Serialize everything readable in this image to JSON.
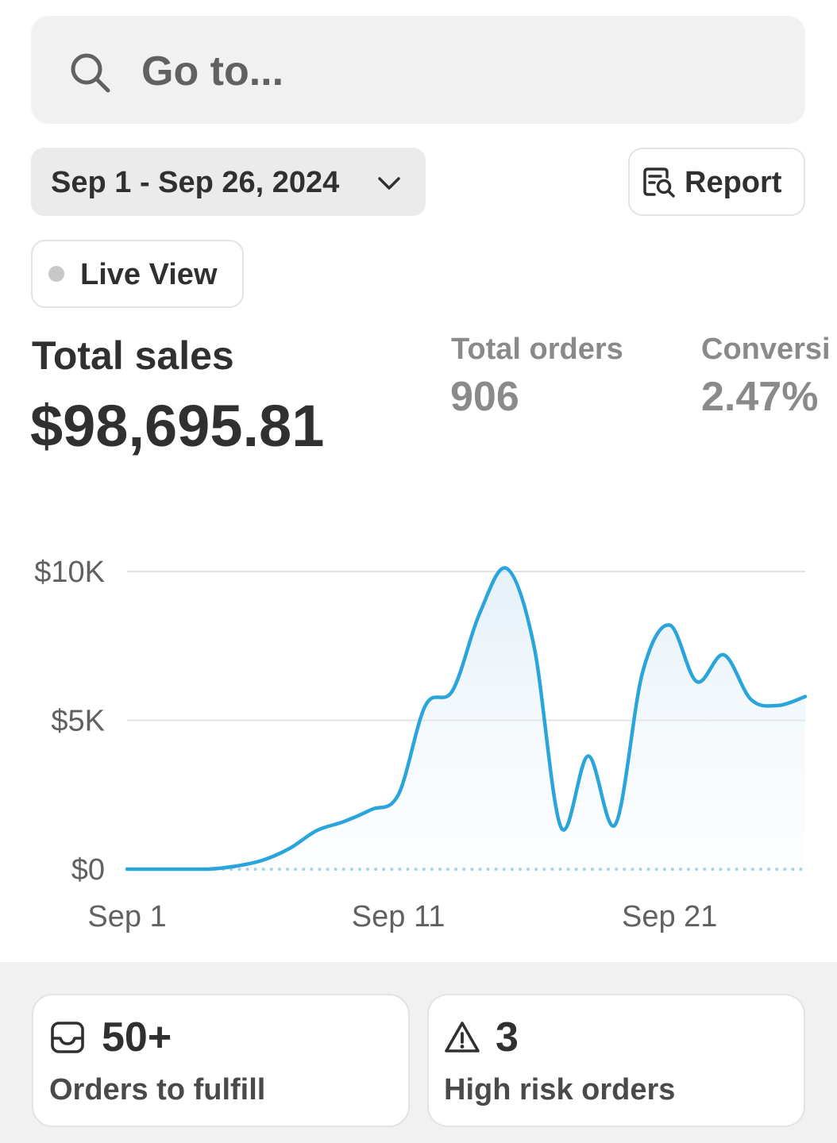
{
  "search": {
    "placeholder": "Go to...",
    "icon": "search-icon"
  },
  "toolbar": {
    "date_range": "Sep 1 - Sep 26, 2024",
    "report_label": "Report",
    "live_view_label": "Live View"
  },
  "metrics": {
    "total_sales": {
      "label": "Total sales",
      "value": "$98,695.81"
    },
    "total_orders": {
      "label": "Total orders",
      "value": "906"
    },
    "conversion": {
      "label": "Conversi",
      "value": "2.47%"
    }
  },
  "chart_data": {
    "type": "area",
    "y_ticks": [
      "$10K",
      "$5K",
      "$0"
    ],
    "x_ticks": [
      "Sep 1",
      "Sep 11",
      "Sep 21"
    ],
    "ylim": [
      0,
      10000
    ],
    "grid": true,
    "x": [
      "Sep 1",
      "Sep 2",
      "Sep 3",
      "Sep 4",
      "Sep 5",
      "Sep 6",
      "Sep 7",
      "Sep 8",
      "Sep 9",
      "Sep 10",
      "Sep 11",
      "Sep 12",
      "Sep 13",
      "Sep 14",
      "Sep 15",
      "Sep 16",
      "Sep 17",
      "Sep 18",
      "Sep 19",
      "Sep 20",
      "Sep 21",
      "Sep 22",
      "Sep 23",
      "Sep 24",
      "Sep 25",
      "Sep 26"
    ],
    "series": [
      {
        "values": [
          0,
          0,
          0,
          0,
          100,
          300,
          700,
          1300,
          1600,
          2000,
          2500,
          5500,
          6000,
          8600,
          10100,
          7500,
          1400,
          3800,
          1500,
          6600,
          8200,
          6300,
          7200,
          5700,
          5500,
          5800
        ]
      }
    ],
    "line_color": "#2aa5dc",
    "baseline_style": "dotted"
  },
  "cards": [
    {
      "icon": "inbox-icon",
      "value": "50+",
      "label": "Orders to fulfill"
    },
    {
      "icon": "warning-icon",
      "value": "3",
      "label": "High risk orders"
    }
  ]
}
